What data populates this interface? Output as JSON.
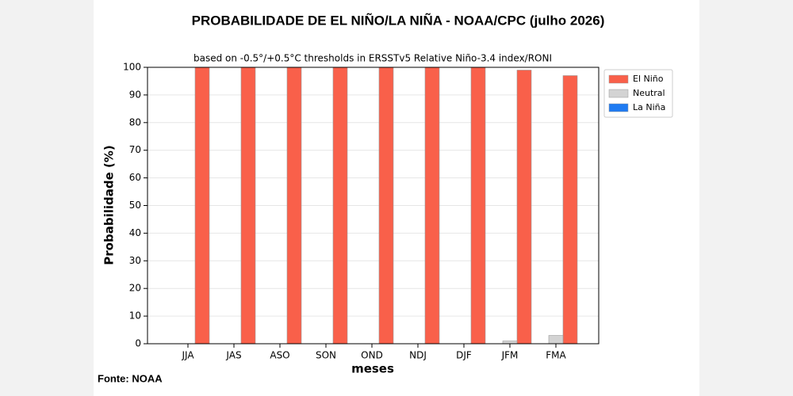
{
  "chart_data": {
    "type": "bar",
    "title": "PROBABILIDADE DE EL NIÑO/LA NIÑA - NOAA/CPC (julho 2026)",
    "subtitle": "based on -0.5°/+0.5°C thresholds in ERSSTv5 Relative Niño-3.4 index/RONI",
    "x_label": "meses",
    "y_label": "Probabilidade (%)",
    "source": "Fonte: NOAA",
    "categories": [
      "JJA",
      "JAS",
      "ASO",
      "SON",
      "OND",
      "NDJ",
      "DJF",
      "JFM",
      "FMA"
    ],
    "series": [
      {
        "name": "El Niño",
        "color": "#f9604a",
        "values": [
          100,
          100,
          100,
          100,
          100,
          100,
          100,
          99,
          97
        ]
      },
      {
        "name": "Neutral",
        "color": "#d3d3d3",
        "values": [
          0,
          0,
          0,
          0,
          0,
          0,
          0,
          1,
          3
        ]
      },
      {
        "name": "La Niña",
        "color": "#1f7bf2",
        "values": [
          0,
          0,
          0,
          0,
          0,
          0,
          0,
          0,
          0
        ]
      }
    ],
    "ylim": [
      0,
      100
    ],
    "yticks": [
      0,
      10,
      20,
      30,
      40,
      50,
      60,
      70,
      80,
      90,
      100
    ],
    "grid": true,
    "legend": "upper right"
  }
}
